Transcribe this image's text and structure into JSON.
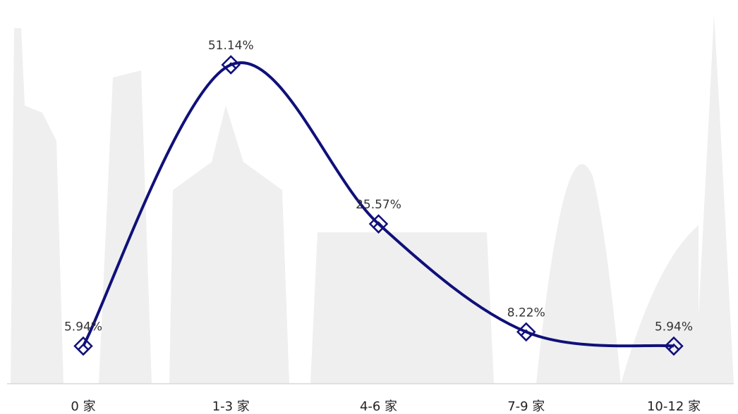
{
  "chart_data": {
    "type": "line",
    "categories": [
      "0 家",
      "1-3 家",
      "4-6 家",
      "7-9 家",
      "10-12 家"
    ],
    "values": [
      5.94,
      51.14,
      25.57,
      8.22,
      5.94
    ],
    "value_labels": [
      "5.94%",
      "51.14%",
      "25.57%",
      "8.22%",
      "5.94%"
    ],
    "color": "#10107a",
    "smooth": true
  }
}
